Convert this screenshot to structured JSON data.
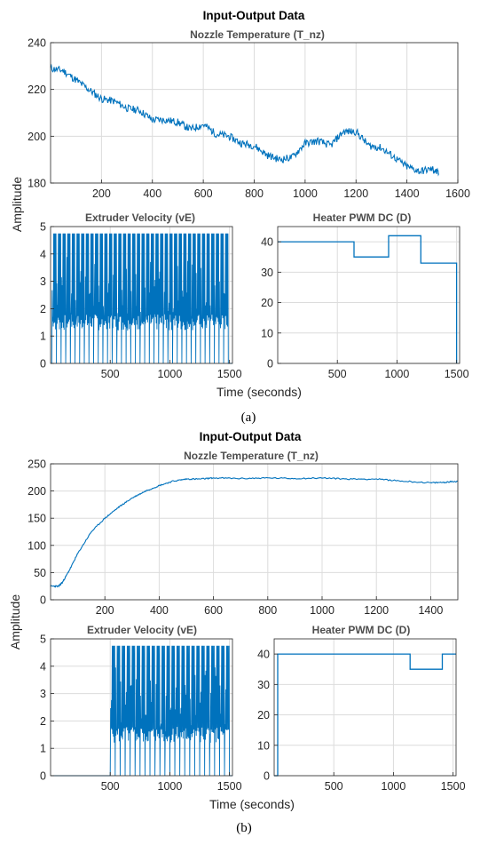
{
  "chart_data": [
    {
      "panel_caption": "(a)",
      "title": "Input-Output Data",
      "ylabel": "Amplitude",
      "xlabel": "Time (seconds)",
      "subplots": [
        {
          "type": "line",
          "title": "Nozzle Temperature (T_nz)",
          "xlim": [
            0,
            1600
          ],
          "ylim": [
            180,
            240
          ],
          "xticks": [
            200,
            400,
            600,
            800,
            1000,
            1200,
            1400,
            1600
          ],
          "yticks": [
            180,
            200,
            220,
            240
          ],
          "grid": true,
          "x": [
            0,
            50,
            100,
            150,
            200,
            250,
            300,
            350,
            400,
            450,
            500,
            550,
            600,
            650,
            700,
            750,
            800,
            850,
            900,
            950,
            1000,
            1050,
            1100,
            1150,
            1200,
            1250,
            1300,
            1350,
            1400,
            1450,
            1500,
            1525
          ],
          "values": [
            229,
            228,
            224,
            220,
            216,
            215,
            212,
            211,
            207,
            207,
            206,
            203,
            205,
            201,
            200,
            197,
            196,
            192,
            190,
            191,
            197,
            198,
            196,
            202,
            202,
            196,
            195,
            191,
            187,
            185,
            186,
            184
          ]
        },
        {
          "type": "line",
          "style": "switching",
          "title": "Extruder Velocity (vE)",
          "xlim": [
            0,
            1525
          ],
          "ylim": [
            0,
            5
          ],
          "xticks": [
            500,
            1000,
            1500
          ],
          "yticks": [
            0,
            1,
            2,
            3,
            4,
            5
          ],
          "grid": true,
          "active_range": [
            10,
            1490
          ],
          "pulse_high": 4.75,
          "base_level": 1.2,
          "pulse_count": 38
        },
        {
          "type": "line",
          "style": "step",
          "title": "Heater PWM DC (D)",
          "xlim": [
            0,
            1525
          ],
          "ylim": [
            0,
            45
          ],
          "xticks": [
            500,
            1000,
            1500
          ],
          "yticks": [
            0,
            10,
            20,
            30,
            40
          ],
          "grid": true,
          "x": [
            0,
            640,
            640,
            930,
            930,
            1200,
            1200,
            1500,
            1500
          ],
          "values": [
            40,
            40,
            35,
            35,
            42,
            42,
            33,
            33,
            0
          ]
        }
      ]
    },
    {
      "panel_caption": "(b)",
      "title": "Input-Output Data",
      "ylabel": "Amplitude",
      "xlabel": "Time (seconds)",
      "subplots": [
        {
          "type": "line",
          "title": "Nozzle Temperature (T_nz)",
          "xlim": [
            0,
            1500
          ],
          "ylim": [
            0,
            250
          ],
          "xticks": [
            200,
            400,
            600,
            800,
            1000,
            1200,
            1400
          ],
          "yticks": [
            0,
            50,
            100,
            150,
            200,
            250
          ],
          "grid": true,
          "x": [
            0,
            30,
            45,
            70,
            100,
            150,
            200,
            250,
            300,
            350,
            400,
            450,
            500,
            550,
            600,
            700,
            800,
            900,
            1000,
            1100,
            1200,
            1300,
            1400,
            1450,
            1500
          ],
          "values": [
            25,
            25,
            33,
            55,
            85,
            125,
            150,
            170,
            187,
            200,
            210,
            218,
            222,
            222,
            224,
            223,
            224,
            223,
            224,
            222,
            222,
            218,
            215,
            216,
            218
          ]
        },
        {
          "type": "line",
          "style": "switching",
          "title": "Extruder Velocity (vE)",
          "xlim": [
            0,
            1525
          ],
          "ylim": [
            0,
            5
          ],
          "xticks": [
            500,
            1000,
            1500
          ],
          "yticks": [
            0,
            1,
            2,
            3,
            4,
            5
          ],
          "grid": true,
          "active_range": [
            500,
            1500
          ],
          "pulse_high": 4.75,
          "base_level": 1.2,
          "pulse_count": 24
        },
        {
          "type": "line",
          "style": "step",
          "title": "Heater PWM DC (D)",
          "xlim": [
            0,
            1525
          ],
          "ylim": [
            0,
            45
          ],
          "xticks": [
            500,
            1000,
            1500
          ],
          "yticks": [
            0,
            10,
            20,
            30,
            40
          ],
          "grid": true,
          "x": [
            0,
            30,
            30,
            1140,
            1140,
            1410,
            1410,
            1525
          ],
          "values": [
            0,
            0,
            40,
            40,
            35,
            35,
            40,
            40
          ]
        }
      ]
    }
  ],
  "colors": {
    "line": "#0072bd",
    "grid": "#dcdcdc",
    "axis": "#262626",
    "title": "#000000",
    "subtitle": "#4d4d4d"
  }
}
